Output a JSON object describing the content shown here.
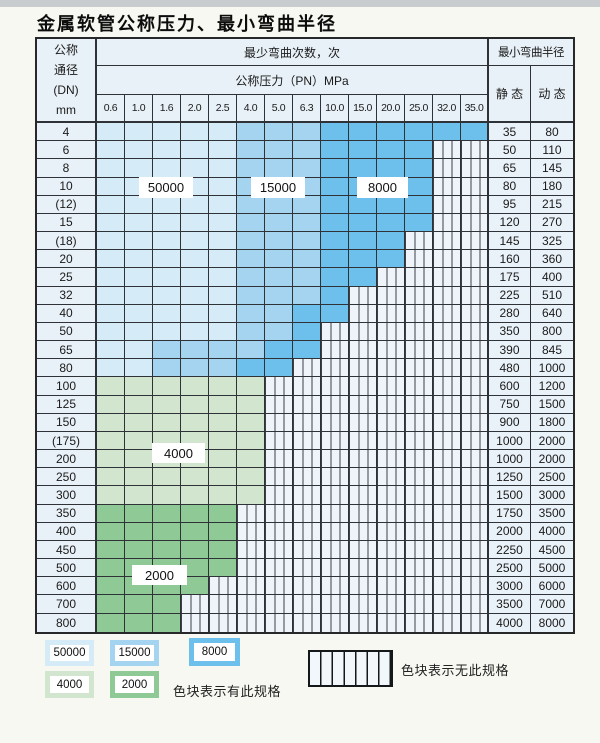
{
  "page": {
    "title": "金属软管公称压力、最小弯曲半径"
  },
  "chart_data": {
    "type": "heatmap",
    "title": "金属软管公称压力、最小弯曲半径",
    "header": {
      "corner": [
        "公称",
        "通径",
        "(DN)",
        "mm"
      ],
      "bend_cycles": "最少弯曲次数，次",
      "pressure": "公称压力（PN）MPa",
      "radius": "最小弯曲半径",
      "static": "静 态",
      "dynamic": "动 态"
    },
    "pressure_columns_MPa": [
      "0.6",
      "1.0",
      "1.6",
      "2.0",
      "2.5",
      "4.0",
      "5.0",
      "6.3",
      "10.0",
      "15.0",
      "20.0",
      "25.0",
      "32.0",
      "35.0"
    ],
    "code_meaning": {
      "L": 50000,
      "M": 15000,
      "D": 8000,
      "G": 4000,
      "E": 2000,
      "S": null
    },
    "rows": [
      {
        "dn": "4",
        "codes": "LLLLLMMMDDDDDD",
        "static": "35",
        "dynamic": "80"
      },
      {
        "dn": "6",
        "codes": "LLLLLMMMDDDDSS",
        "static": "50",
        "dynamic": "110"
      },
      {
        "dn": "8",
        "codes": "LLLLLMMMDDDDSS",
        "static": "65",
        "dynamic": "145"
      },
      {
        "dn": "10",
        "codes": "LLLLLMMMDDDDSS",
        "static": "80",
        "dynamic": "180"
      },
      {
        "dn": "(12)",
        "codes": "LLLLLMMMDDDDSS",
        "static": "95",
        "dynamic": "215"
      },
      {
        "dn": "15",
        "codes": "LLLLLMMMDDDDSS",
        "static": "120",
        "dynamic": "270"
      },
      {
        "dn": "(18)",
        "codes": "LLLLLMMMDDDSSS",
        "static": "145",
        "dynamic": "325"
      },
      {
        "dn": "20",
        "codes": "LLLLLMMMDDDSSS",
        "static": "160",
        "dynamic": "360"
      },
      {
        "dn": "25",
        "codes": "LLLLLMMMDDSSSS",
        "static": "175",
        "dynamic": "400"
      },
      {
        "dn": "32",
        "codes": "LLLLLMMMDSSSSS",
        "static": "225",
        "dynamic": "510"
      },
      {
        "dn": "40",
        "codes": "LLLLLMMDDSSSSS",
        "static": "280",
        "dynamic": "640"
      },
      {
        "dn": "50",
        "codes": "LLLLLMMDSSSSSS",
        "static": "350",
        "dynamic": "800"
      },
      {
        "dn": "65",
        "codes": "LLMMMMDDSSSSSS",
        "static": "390",
        "dynamic": "845"
      },
      {
        "dn": "80",
        "codes": "LLMMMDDSSSSSSS",
        "static": "480",
        "dynamic": "1000"
      },
      {
        "dn": "100",
        "codes": "GGGGGGSSSSSSSS",
        "static": "600",
        "dynamic": "1200"
      },
      {
        "dn": "125",
        "codes": "GGGGGGSSSSSSSS",
        "static": "750",
        "dynamic": "1500"
      },
      {
        "dn": "150",
        "codes": "GGGGGGSSSSSSSS",
        "static": "900",
        "dynamic": "1800"
      },
      {
        "dn": "(175)",
        "codes": "GGGGGGSSSSSSSS",
        "static": "1000",
        "dynamic": "2000"
      },
      {
        "dn": "200",
        "codes": "GGGGGGSSSSSSSS",
        "static": "1000",
        "dynamic": "2000"
      },
      {
        "dn": "250",
        "codes": "GGGGGGSSSSSSSS",
        "static": "1250",
        "dynamic": "2500"
      },
      {
        "dn": "300",
        "codes": "GGGGGGSSSSSSSS",
        "static": "1500",
        "dynamic": "3000"
      },
      {
        "dn": "350",
        "codes": "EEEEESSSSSSSSS",
        "static": "1750",
        "dynamic": "3500"
      },
      {
        "dn": "400",
        "codes": "EEEEESSSSSSSSS",
        "static": "2000",
        "dynamic": "4000"
      },
      {
        "dn": "450",
        "codes": "EEEEESSSSSSSSS",
        "static": "2250",
        "dynamic": "4500"
      },
      {
        "dn": "500",
        "codes": "EEEEESSSSSSSSS",
        "static": "2500",
        "dynamic": "5000"
      },
      {
        "dn": "600",
        "codes": "EEEESSSSSSSSSS",
        "static": "3000",
        "dynamic": "6000"
      },
      {
        "dn": "700",
        "codes": "EEESSSSSSSSSSS",
        "static": "3500",
        "dynamic": "7000"
      },
      {
        "dn": "800",
        "codes": "EEESSSSSSSSSSS",
        "static": "4000",
        "dynamic": "8000"
      }
    ]
  },
  "overlays": [
    {
      "id": "ov-50000",
      "text": "50000"
    },
    {
      "id": "ov-15000",
      "text": "15000"
    },
    {
      "id": "ov-8000",
      "text": "8000"
    },
    {
      "id": "ov-4000",
      "text": "4000"
    },
    {
      "id": "ov-2000",
      "text": "2000"
    }
  ],
  "legend": {
    "items": [
      {
        "code": "L",
        "text": "50000"
      },
      {
        "code": "M",
        "text": "15000"
      },
      {
        "code": "D",
        "text": "8000"
      },
      {
        "code": "G",
        "text": "4000"
      },
      {
        "code": "E",
        "text": "2000"
      }
    ],
    "has_spec_text": "色块表示有此规格",
    "no_spec_text": "色块表示无此规格"
  },
  "colors": {
    "L": "#d5ebf8",
    "M": "#a4d4f0",
    "D": "#6dbfec",
    "G": "#d2e6cf",
    "E": "#8fca96",
    "stripe_background": "#eef4f9",
    "grid_line": "#2f3337"
  }
}
